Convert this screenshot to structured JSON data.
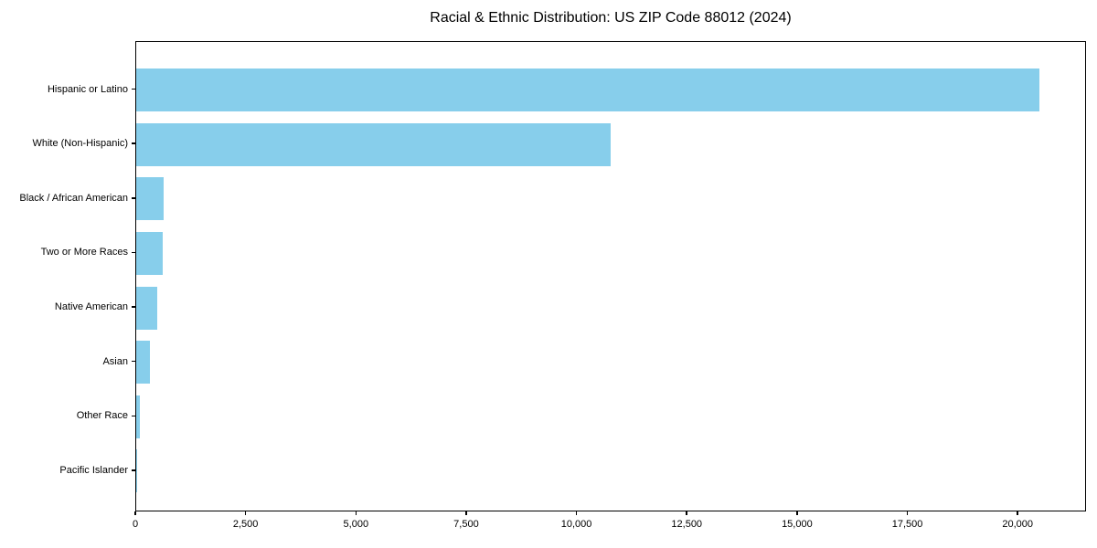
{
  "chart_data": {
    "type": "bar",
    "orientation": "horizontal",
    "title": "Racial & Ethnic Distribution: US ZIP Code 88012 (2024)",
    "categories": [
      "Hispanic or Latino",
      "White (Non-Hispanic)",
      "Black / African American",
      "Two or More Races",
      "Native American",
      "Asian",
      "Other Race",
      "Pacific Islander"
    ],
    "values": [
      20480,
      10760,
      620,
      600,
      470,
      305,
      80,
      10
    ],
    "bar_color": "#87CEEB",
    "axis_color": "#000000",
    "text_color": "#000000",
    "background_color": "#ffffff",
    "xlabel": "",
    "ylabel": "",
    "xlim": [
      0,
      21550
    ],
    "xticks": [
      0,
      2500,
      5000,
      7500,
      10000,
      12500,
      15000,
      17500,
      20000
    ],
    "xtick_labels": [
      "0",
      "2,500",
      "5,000",
      "7,500",
      "10,000",
      "12,500",
      "15,000",
      "17,500",
      "20,000"
    ],
    "grid": false,
    "legend": null
  }
}
